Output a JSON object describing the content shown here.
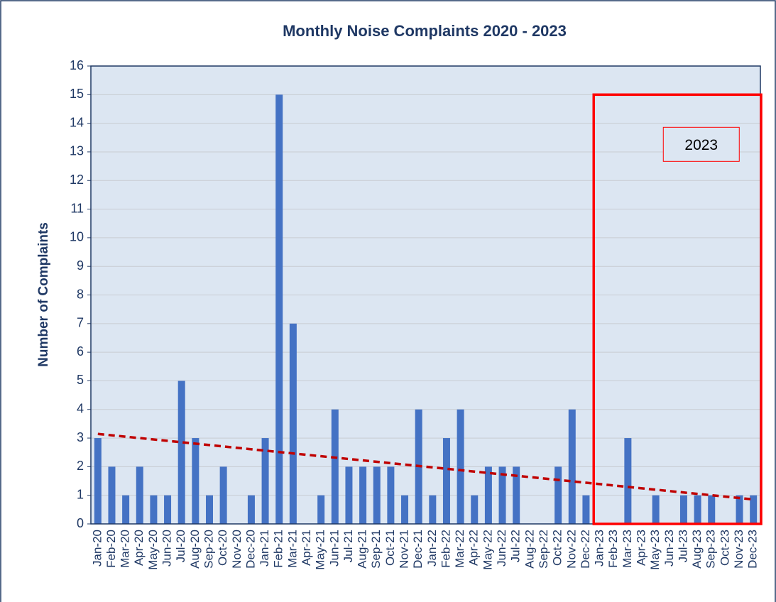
{
  "chart_data": {
    "type": "bar",
    "title": "Monthly Noise Complaints 2020 - 2023",
    "y_label": "Number of Complaints",
    "categories": [
      "Jan-20",
      "Feb-20",
      "Mar-20",
      "Apr-20",
      "May-20",
      "Jun-20",
      "Jul-20",
      "Aug-20",
      "Sep-20",
      "Oct-20",
      "Nov-20",
      "Dec-20",
      "Jan-21",
      "Feb-21",
      "Mar-21",
      "Apr-21",
      "May-21",
      "Jun-21",
      "Jul-21",
      "Aug-21",
      "Sep-21",
      "Oct-21",
      "Nov-21",
      "Dec-21",
      "Jan-22",
      "Feb-22",
      "Mar-22",
      "Apr-22",
      "May-22",
      "Jun-22",
      "Jul-22",
      "Aug-22",
      "Sep-22",
      "Oct-22",
      "Nov-22",
      "Dec-22",
      "Jan-23",
      "Feb-23",
      "Mar-23",
      "Apr-23",
      "May-23",
      "Jun-23",
      "Jul-23",
      "Aug-23",
      "Sep-23",
      "Oct-23",
      "Nov-23",
      "Dec-23"
    ],
    "values": [
      3,
      2,
      1,
      2,
      1,
      1,
      5,
      3,
      1,
      2,
      0,
      1,
      3,
      15,
      7,
      0,
      1,
      4,
      2,
      2,
      2,
      2,
      1,
      4,
      1,
      3,
      4,
      1,
      2,
      2,
      2,
      0,
      0,
      2,
      4,
      1,
      0,
      0,
      3,
      0,
      1,
      0,
      1,
      1,
      1,
      0,
      1,
      1
    ],
    "color": "#4472c4",
    "trendline": true,
    "trendline_color": "#c00000",
    "annotation": "2023",
    "highlight_color": "#ff0000",
    "ylim": [
      0,
      16
    ],
    "yticks": [
      0,
      1,
      2,
      3,
      4,
      5,
      6,
      7,
      8,
      9,
      10,
      11,
      12,
      13,
      14,
      15,
      16
    ],
    "grid": true
  }
}
